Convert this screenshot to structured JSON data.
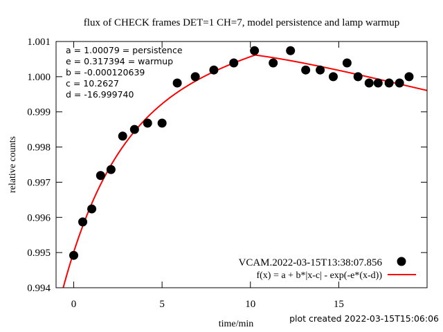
{
  "chart_data": {
    "type": "scatter",
    "title": "flux of CHECK frames DET=1 CH=7, model persistence and lamp warmup",
    "xlabel": "time/min",
    "ylabel": "relative counts",
    "xlim": [
      -1,
      20
    ],
    "ylim": [
      0.994,
      1.001
    ],
    "xticks": [
      0,
      5,
      10,
      15
    ],
    "xtick_labels": [
      "0",
      "5",
      "10",
      "15"
    ],
    "yticks": [
      0.994,
      0.995,
      0.996,
      0.997,
      0.998,
      0.999,
      1.0,
      1.001
    ],
    "ytick_labels": [
      "0.994",
      "0.995",
      "0.996",
      "0.997",
      "0.998",
      "0.999",
      "1.000",
      "1.001"
    ],
    "grid": false,
    "legend_position": "bottom-right",
    "series": [
      {
        "name": "VCAM.2022-03-15T13:38:07.856",
        "kind": "points",
        "color": "#000000",
        "x": [
          0.0,
          0.51,
          1.02,
          1.52,
          2.11,
          2.77,
          3.44,
          4.18,
          5.0,
          5.86,
          6.88,
          7.93,
          9.06,
          10.23,
          11.29,
          12.27,
          13.13,
          13.95,
          14.69,
          15.47,
          16.09,
          16.72,
          17.23,
          17.85,
          18.44,
          18.98
        ],
        "y": [
          0.99492,
          0.99587,
          0.99624,
          0.99719,
          0.99736,
          0.99831,
          0.9985,
          0.99868,
          0.99868,
          0.99982,
          1.0,
          1.00019,
          1.00039,
          1.00074,
          1.00039,
          1.00074,
          1.00019,
          1.00019,
          1.0,
          1.00039,
          1.0,
          0.99982,
          0.99982,
          0.99982,
          0.99982,
          1.0
        ]
      },
      {
        "name": "f(x) = a + b*|x-c| - exp(-e*(x-d))",
        "kind": "line",
        "color": "#ff0000",
        "params": {
          "a": 1.00079,
          "e": 0.317394,
          "b": -0.000120639,
          "c": 10.2627,
          "d": -16.99974
        }
      }
    ],
    "annotations": {
      "fit_params": [
        "a = 1.00079 = persistence",
        "e = 0.317394 = warmup",
        "b = -0.000120639",
        "c = 10.2627",
        "d = -16.999740"
      ],
      "footer": "plot created 2022-03-15T15:06:06"
    }
  }
}
